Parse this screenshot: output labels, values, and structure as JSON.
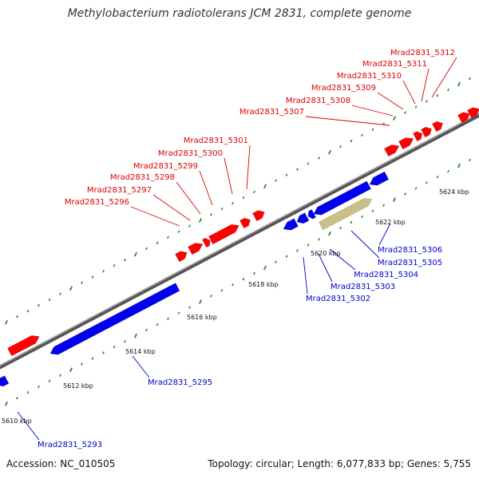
{
  "title": "Methylobacterium radiotolerans JCM 2831, complete genome",
  "footer": {
    "accession": "Accession: NC_010505",
    "summary": "Topology: circular; Length: 6,077,833 bp; Genes: 5,755"
  },
  "colors": {
    "forward_gene": "#ff0000",
    "reverse_gene": "#0000ee",
    "highlight_gene": "#c8c088",
    "backbone": "#777777",
    "dots": "#2a8a2a",
    "forward_label": "#dd0000",
    "reverse_label": "#0000cc"
  },
  "scale": {
    "unit": "kbp",
    "tick_labels": [
      "5610 kbp",
      "5612 kbp",
      "5614 kbp",
      "5616 kbp",
      "5618 kbp",
      "5620 kbp",
      "5622 kbp",
      "5624 kbp"
    ]
  },
  "genes": {
    "forward": [
      {
        "label": "Mrad2831_5296"
      },
      {
        "label": "Mrad2831_5297"
      },
      {
        "label": "Mrad2831_5298"
      },
      {
        "label": "Mrad2831_5299"
      },
      {
        "label": "Mrad2831_5300"
      },
      {
        "label": "Mrad2831_5301"
      },
      {
        "label": "Mrad2831_5307"
      },
      {
        "label": "Mrad2831_5308"
      },
      {
        "label": "Mrad2831_5309"
      },
      {
        "label": "Mrad2831_5310"
      },
      {
        "label": "Mrad2831_5311"
      },
      {
        "label": "Mrad2831_5312"
      }
    ],
    "reverse": [
      {
        "label": "Mrad2831_5293"
      },
      {
        "label": "Mrad2831_5295"
      },
      {
        "label": "Mrad2831_5302"
      },
      {
        "label": "Mrad2831_5303"
      },
      {
        "label": "Mrad2831_5304"
      },
      {
        "label": "Mrad2831_5305"
      },
      {
        "label": "Mrad2831_5306"
      }
    ]
  }
}
